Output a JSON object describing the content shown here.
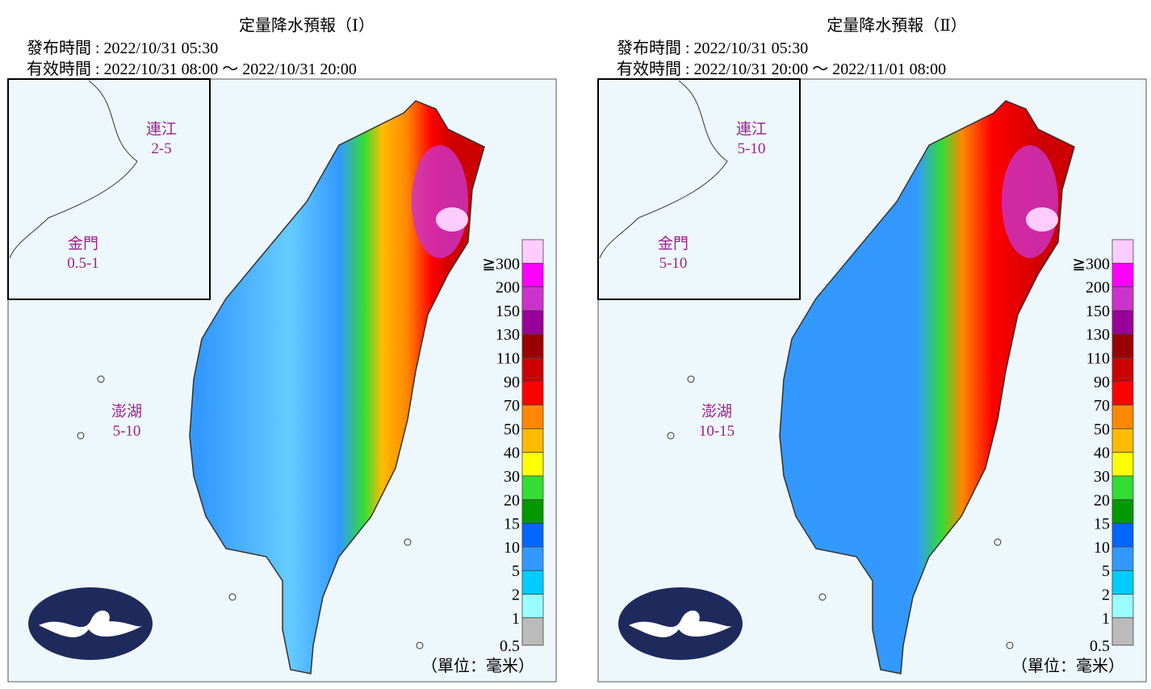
{
  "panels": [
    {
      "title": "定量降水預報（Ⅰ）",
      "issued": "發布時間 : 2022/10/31 05:30",
      "valid": "有效時間 : 2022/10/31 08:00 ～ 2022/10/31 20:00",
      "matsu": {
        "name": "連江",
        "amount": "2-5"
      },
      "kinmen": {
        "name": "金門",
        "amount": "0.5-1"
      },
      "penghu": {
        "name": "澎湖",
        "amount": "5-10"
      }
    },
    {
      "title": "定量降水預報（Ⅱ）",
      "issued": "發布時間 : 2022/10/31 05:30",
      "valid": "有效時間 : 2022/10/31 20:00 ～ 2022/11/01 08:00",
      "matsu": {
        "name": "連江",
        "amount": "5-10"
      },
      "kinmen": {
        "name": "金門",
        "amount": "5-10"
      },
      "penghu": {
        "name": "澎湖",
        "amount": "10-15"
      }
    }
  ],
  "legend": {
    "labels": [
      "≧300",
      "200",
      "150",
      "130",
      "110",
      "90",
      "70",
      "50",
      "40",
      "30",
      "20",
      "15",
      "10",
      "5",
      "2",
      "1",
      "0.5"
    ],
    "colors": [
      "#ffccff",
      "#ff00ff",
      "#cc33cc",
      "#990099",
      "#990000",
      "#cc0000",
      "#ff0000",
      "#ff8800",
      "#ffbb00",
      "#ffff00",
      "#33dd33",
      "#009900",
      "#0066ff",
      "#3399ff",
      "#00ccff",
      "#99ffff",
      "#bbbbbb"
    ],
    "unit": "（單位：毫米）"
  }
}
